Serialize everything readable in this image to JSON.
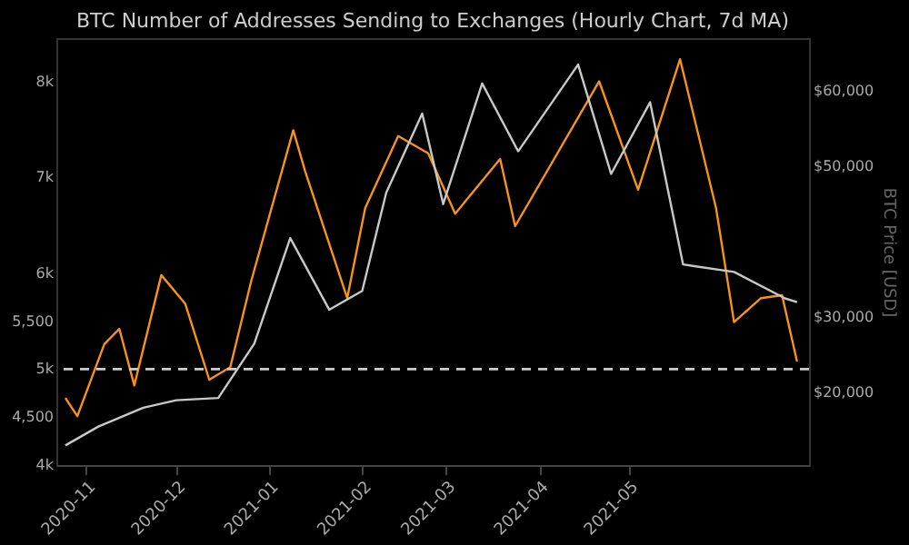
{
  "chart_data": {
    "type": "line",
    "title": "BTC Number of Addresses Sending to Exchanges (Hourly Chart, 7d MA)",
    "y2label": "BTC Price [USD]",
    "xlim": [
      "2020-10-22",
      "2021-06-30"
    ],
    "xticks": [
      {
        "value": "2020-11-01",
        "label": "2020-11"
      },
      {
        "value": "2020-12-01",
        "label": "2020-12"
      },
      {
        "value": "2021-01-01",
        "label": "2021-01"
      },
      {
        "value": "2021-02-01",
        "label": "2021-02"
      },
      {
        "value": "2021-03-01",
        "label": "2021-03"
      },
      {
        "value": "2021-04-01",
        "label": "2021-04"
      },
      {
        "value": "2021-05-01",
        "label": "2021-05"
      }
    ],
    "ylim": [
      4000,
      8450
    ],
    "yticks": [
      {
        "value": 4000,
        "label": "4k"
      },
      {
        "value": 4500,
        "label": "4,500"
      },
      {
        "value": 5000,
        "label": "5k"
      },
      {
        "value": 5500,
        "label": "5,500"
      },
      {
        "value": 6000,
        "label": "6k"
      },
      {
        "value": 7000,
        "label": "7k"
      },
      {
        "value": 8000,
        "label": "8k"
      }
    ],
    "y2lim": [
      10400,
      67000
    ],
    "y2ticks": [
      {
        "value": 20000,
        "label": "$20,000"
      },
      {
        "value": 30000,
        "label": "$30,000"
      },
      {
        "value": 50000,
        "label": "$50,000"
      },
      {
        "value": 60000,
        "label": "$60,000"
      }
    ],
    "series": [
      {
        "color": "#f7931a",
        "x": [
          "2020-10-25",
          "2020-10-29",
          "2020-11-07",
          "2020-11-12",
          "2020-11-17",
          "2020-11-26",
          "2020-12-04",
          "2020-12-12",
          "2020-12-19",
          "2020-12-26",
          "2021-01-09",
          "2021-01-13",
          "2021-01-27",
          "2021-02-02",
          "2021-02-13",
          "2021-02-23",
          "2021-03-04",
          "2021-03-19",
          "2021-03-24",
          "2021-04-21",
          "2021-05-04",
          "2021-05-18",
          "2021-05-30",
          "2021-06-05",
          "2021-06-14",
          "2021-06-21",
          "2021-06-26"
        ],
        "values": [
          4700,
          4510,
          5260,
          5420,
          4830,
          5980,
          5680,
          4890,
          5020,
          5920,
          7490,
          7060,
          5740,
          6680,
          7430,
          7250,
          6620,
          7190,
          6490,
          8000,
          6870,
          8230,
          6680,
          5490,
          5740,
          5770,
          5080
        ]
      },
      {
        "color": "#c8c8c8",
        "axis": "y2",
        "x": [
          "2020-10-25",
          "2020-11-05",
          "2020-11-20",
          "2020-12-01",
          "2020-12-15",
          "2020-12-27",
          "2021-01-08",
          "2021-01-21",
          "2021-02-01",
          "2021-02-09",
          "2021-02-21",
          "2021-02-28",
          "2021-03-13",
          "2021-03-25",
          "2021-04-14",
          "2021-04-25",
          "2021-05-08",
          "2021-05-19",
          "2021-06-05",
          "2021-06-22",
          "2021-06-26"
        ],
        "values": [
          13000,
          15500,
          18000,
          19000,
          19300,
          26500,
          40500,
          31000,
          33500,
          46500,
          57000,
          45000,
          61000,
          52000,
          63500,
          49000,
          58500,
          37000,
          36000,
          32500,
          32000
        ]
      }
    ],
    "ref_lines": [
      {
        "axis": "y",
        "value": 5000,
        "color": "#cccccc",
        "line_style": "dashed"
      }
    ]
  }
}
